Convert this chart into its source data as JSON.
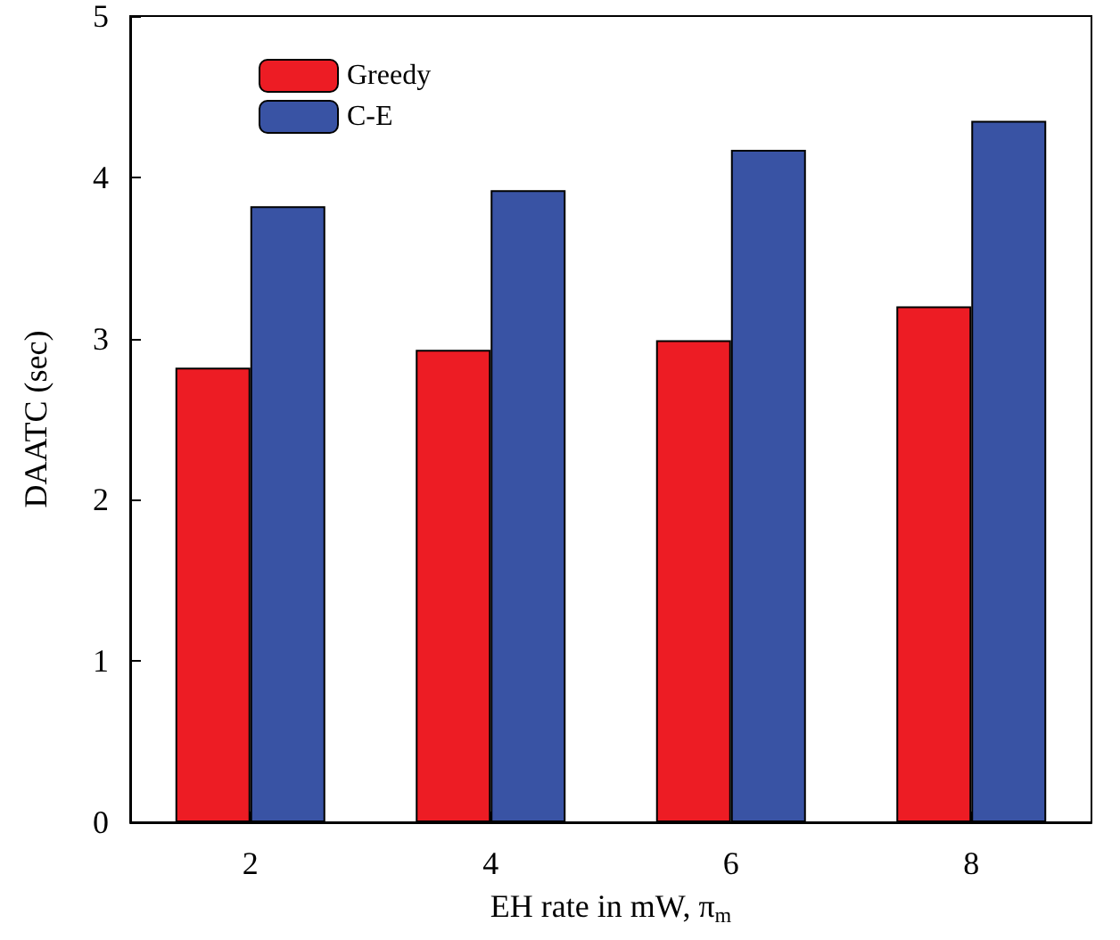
{
  "chart_data": {
    "type": "bar",
    "xlabel": "EH rate in mW, π$_{m}$",
    "ylabel": "DAATC (sec)",
    "categories": [
      "2",
      "4",
      "6",
      "8"
    ],
    "series": [
      {
        "name": "Greedy",
        "color": "#ed1c24",
        "values": [
          2.82,
          2.93,
          2.99,
          3.2
        ]
      },
      {
        "name": "C-E",
        "color": "#3953a4",
        "values": [
          3.82,
          3.92,
          4.17,
          4.35
        ]
      }
    ],
    "ylim": [
      0,
      5
    ],
    "yticks": [
      0,
      1,
      2,
      3,
      4,
      5
    ],
    "grid": false,
    "legend": "top left"
  }
}
